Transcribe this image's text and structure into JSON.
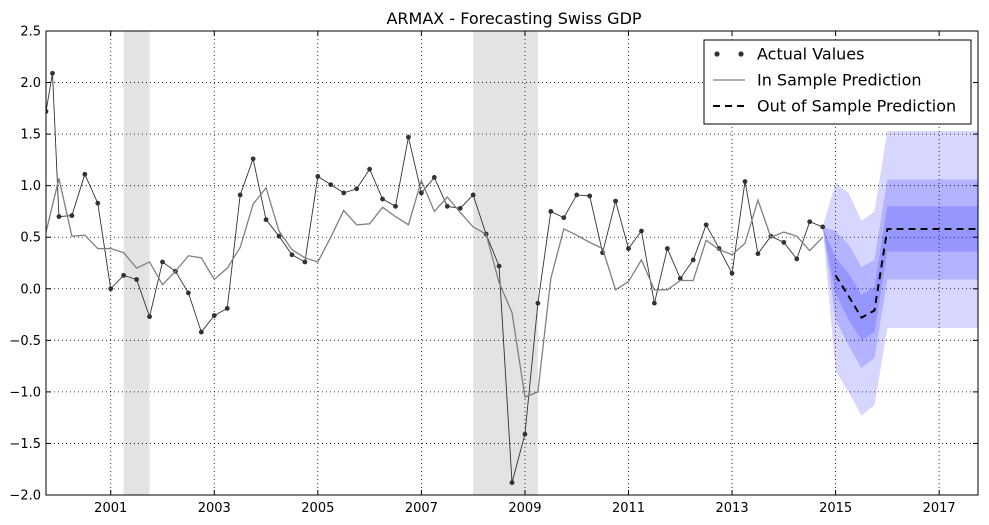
{
  "chart_data": {
    "type": "line",
    "title": "ARMAX - Forecasting Swiss GDP",
    "xlabel": "",
    "ylabel": "",
    "xlim": [
      1999.75,
      2017.75
    ],
    "ylim": [
      -2.0,
      2.5
    ],
    "x_ticks": [
      2001,
      2003,
      2005,
      2007,
      2009,
      2011,
      2013,
      2015,
      2017
    ],
    "x_tick_labels": [
      "2001",
      "2003",
      "2005",
      "2007",
      "2009",
      "2011",
      "2013",
      "2015",
      "2017"
    ],
    "y_ticks": [
      -2.0,
      -1.5,
      -1.0,
      -0.5,
      0.0,
      0.5,
      1.0,
      1.5,
      2.0,
      2.5
    ],
    "y_tick_labels": [
      "−2.0",
      "−1.5",
      "−1.0",
      "−0.5",
      "0.0",
      "0.5",
      "1.0",
      "1.5",
      "2.0",
      "2.5"
    ],
    "grid": true,
    "legend_position": "top-right",
    "legend": [
      "Actual Values",
      "In Sample Prediction",
      "Out of Sample Prediction"
    ],
    "recessions": [
      [
        2001.25,
        2001.75
      ],
      [
        2008.0,
        2009.25
      ]
    ],
    "series": [
      {
        "name": "Actual Values",
        "style": "dots-connected",
        "color": "#333333",
        "x": [
          1999.75,
          1999.875,
          2000.0,
          2000.25,
          2000.5,
          2000.75,
          2001.0,
          2001.25,
          2001.5,
          2001.75,
          2002.0,
          2002.25,
          2002.5,
          2002.75,
          2003.0,
          2003.25,
          2003.5,
          2003.75,
          2004.0,
          2004.25,
          2004.5,
          2004.75,
          2005.0,
          2005.25,
          2005.5,
          2005.75,
          2006.0,
          2006.25,
          2006.5,
          2006.75,
          2007.0,
          2007.25,
          2007.5,
          2007.75,
          2008.0,
          2008.25,
          2008.5,
          2008.75,
          2009.0,
          2009.25,
          2009.5,
          2009.75,
          2010.0,
          2010.25,
          2010.5,
          2010.75,
          2011.0,
          2011.25,
          2011.5,
          2011.75,
          2012.0,
          2012.25,
          2012.5,
          2012.75,
          2013.0,
          2013.25,
          2013.5,
          2013.75,
          2014.0,
          2014.25,
          2014.5,
          2014.75
        ],
        "values": [
          1.72,
          2.09,
          0.7,
          0.71,
          1.11,
          0.83,
          0.0,
          0.13,
          0.09,
          -0.27,
          0.26,
          0.17,
          -0.04,
          -0.42,
          -0.26,
          -0.19,
          0.91,
          1.26,
          0.67,
          0.51,
          0.33,
          0.26,
          1.09,
          1.01,
          0.93,
          0.97,
          1.16,
          0.87,
          0.8,
          1.47,
          0.93,
          1.08,
          0.8,
          0.78,
          0.91,
          0.53,
          0.22,
          -1.88,
          -1.41,
          -0.14,
          0.75,
          0.69,
          0.91,
          0.9,
          0.35,
          0.85,
          0.39,
          0.56,
          -0.14,
          0.39,
          0.1,
          0.28,
          0.62,
          0.39,
          0.15,
          1.04,
          0.34,
          0.51,
          0.45,
          0.29,
          0.65,
          0.6
        ]
      },
      {
        "name": "In Sample Prediction",
        "style": "line",
        "color": "#808080",
        "x": [
          1999.75,
          2000.0,
          2000.25,
          2000.5,
          2000.75,
          2001.0,
          2001.25,
          2001.5,
          2001.75,
          2002.0,
          2002.25,
          2002.5,
          2002.75,
          2003.0,
          2003.25,
          2003.5,
          2003.75,
          2004.0,
          2004.25,
          2004.5,
          2004.75,
          2005.0,
          2005.25,
          2005.5,
          2005.75,
          2006.0,
          2006.25,
          2006.5,
          2006.75,
          2007.0,
          2007.25,
          2007.5,
          2007.75,
          2008.0,
          2008.25,
          2008.5,
          2008.75,
          2009.0,
          2009.25,
          2009.5,
          2009.75,
          2010.0,
          2010.25,
          2010.5,
          2010.75,
          2011.0,
          2011.25,
          2011.5,
          2011.75,
          2012.0,
          2012.25,
          2012.5,
          2012.75,
          2013.0,
          2013.25,
          2013.5,
          2013.75,
          2014.0,
          2014.25,
          2014.5,
          2014.75
        ],
        "values": [
          0.55,
          1.07,
          0.51,
          0.52,
          0.39,
          0.39,
          0.35,
          0.2,
          0.26,
          0.04,
          0.17,
          0.32,
          0.3,
          0.09,
          0.2,
          0.4,
          0.82,
          0.98,
          0.56,
          0.38,
          0.3,
          0.26,
          0.5,
          0.76,
          0.62,
          0.63,
          0.79,
          0.7,
          0.62,
          1.05,
          0.75,
          0.89,
          0.74,
          0.6,
          0.53,
          0.06,
          -0.23,
          -1.05,
          -1.0,
          0.1,
          0.58,
          0.52,
          0.45,
          0.39,
          -0.01,
          0.07,
          0.28,
          -0.01,
          -0.01,
          0.08,
          0.08,
          0.47,
          0.38,
          0.33,
          0.44,
          0.86,
          0.5,
          0.55,
          0.51,
          0.37,
          0.5
        ]
      },
      {
        "name": "Out of Sample Prediction",
        "style": "dashed",
        "color": "#000000",
        "x": [
          2015.0,
          2015.25,
          2015.5,
          2015.75,
          2016.0,
          2016.25,
          2016.5,
          2016.75,
          2017.0,
          2017.25,
          2017.5,
          2017.75
        ],
        "values": [
          0.13,
          -0.07,
          -0.28,
          -0.21,
          0.58,
          0.58,
          0.58,
          0.58,
          0.58,
          0.58,
          0.58,
          0.58
        ]
      }
    ],
    "confidence_bands": {
      "x": [
        2014.75,
        2015.0,
        2015.25,
        2015.5,
        2015.75,
        2016.0,
        2016.25,
        2016.5,
        2016.75,
        2017.0,
        2017.25,
        2017.5,
        2017.75
      ],
      "color": "#0000ff",
      "bands": [
        {
          "lower": [
            0.6,
            -0.8,
            -1.0,
            -1.23,
            -1.13,
            -0.38,
            -0.38,
            -0.38,
            -0.38,
            -0.38,
            -0.38,
            -0.38,
            -0.38
          ],
          "upper": [
            0.6,
            1.03,
            0.93,
            0.66,
            0.75,
            1.53,
            1.53,
            1.53,
            1.53,
            1.53,
            1.53,
            1.53,
            1.53
          ]
        },
        {
          "lower": [
            0.6,
            -0.3,
            -0.55,
            -0.77,
            -0.67,
            0.09,
            0.09,
            0.09,
            0.09,
            0.09,
            0.09,
            0.09,
            0.09
          ],
          "upper": [
            0.6,
            0.56,
            0.43,
            0.21,
            0.28,
            1.06,
            1.06,
            1.06,
            1.06,
            1.06,
            1.06,
            1.06,
            1.06
          ]
        },
        {
          "lower": [
            0.6,
            -0.05,
            -0.3,
            -0.5,
            -0.42,
            0.36,
            0.36,
            0.36,
            0.36,
            0.36,
            0.36,
            0.36,
            0.36
          ],
          "upper": [
            0.6,
            0.3,
            0.15,
            -0.06,
            0.02,
            0.8,
            0.8,
            0.8,
            0.8,
            0.8,
            0.8,
            0.8,
            0.8
          ]
        }
      ]
    }
  }
}
